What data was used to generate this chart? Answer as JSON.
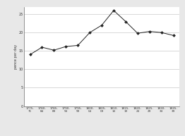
{
  "x_labels": [
    "1775-\n71",
    "1780-\n84",
    "1785-\n89",
    "1790-\n94",
    "1795-\n99",
    "1800-\n04",
    "1805-\n09",
    "1810-\n14",
    "1815-\n19",
    "1820-\n24",
    "1825-\n29",
    "1830-\n34",
    "1835-\n39"
  ],
  "y_values": [
    14.0,
    16.0,
    15.2,
    16.2,
    16.5,
    20.0,
    22.0,
    26.0,
    23.0,
    19.8,
    20.3,
    20.0,
    19.2
  ],
  "ylim": [
    0,
    27
  ],
  "yticks": [
    0,
    5,
    10,
    15,
    20,
    25
  ],
  "ylabel": "pence per day",
  "line_color": "#222222",
  "marker": "D",
  "marker_size": 2,
  "marker_color": "#222222",
  "grid_color": "#bbbbbb",
  "plot_bg_color": "#ffffff",
  "fig_bg_color": "#e8e8e8",
  "title": ""
}
